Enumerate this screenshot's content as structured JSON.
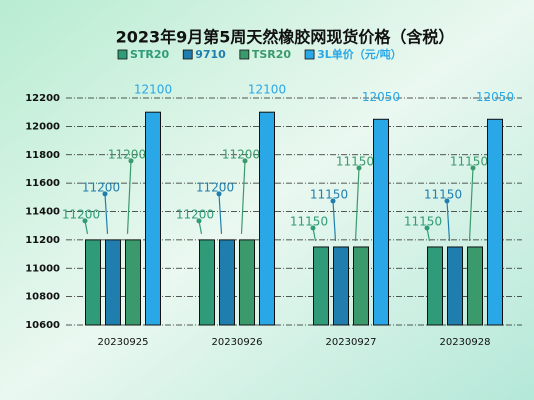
{
  "chart_data": {
    "type": "bar",
    "title": "2023年9月第5周天然橡胶网现货价格（含税）",
    "categories": [
      "20230925",
      "20230926",
      "20230927",
      "20230928"
    ],
    "series": [
      {
        "name": "STR20",
        "color": "#2f9b78",
        "values": [
          11200,
          11200,
          11150,
          11150
        ]
      },
      {
        "name": "9710",
        "color": "#1f7eae",
        "values": [
          11200,
          11200,
          11150,
          11150
        ]
      },
      {
        "name": "TSR20",
        "color": "#3b9a6c",
        "values": [
          11200,
          11200,
          11150,
          11150
        ]
      },
      {
        "name": "3L单价（元/吨）",
        "color": "#2aa7e6",
        "values": [
          12100,
          12100,
          12050,
          12050
        ]
      }
    ],
    "ylim": [
      10600,
      12200
    ],
    "yticks": [
      10600,
      10800,
      11000,
      11200,
      11400,
      11600,
      11800,
      12000,
      12200
    ],
    "grid": true
  }
}
